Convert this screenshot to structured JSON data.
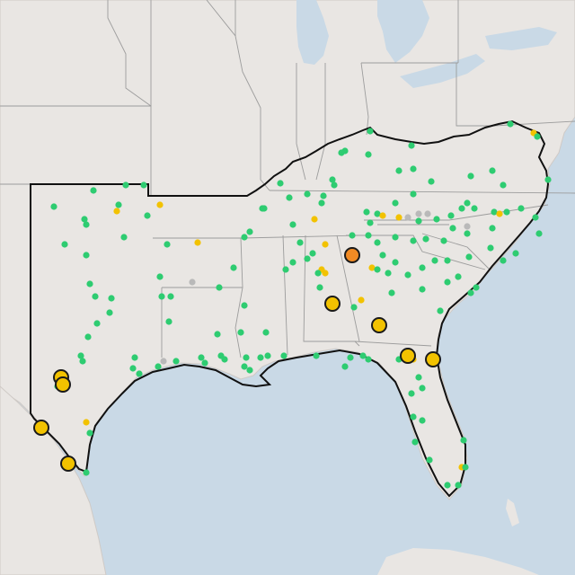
{
  "map": {
    "colors": {
      "water": "#c9d9e6",
      "land": "#e9e6e3",
      "state_border": "#9c9c9c",
      "region_outline": "#111111",
      "marker_green": "#2ecc71",
      "marker_yellow": "#f2c200",
      "marker_orange": "#f08a24",
      "marker_gray": "#b9b9b9"
    },
    "marker_icons": {
      "small": "dot-icon",
      "large": "circle-icon"
    }
  }
}
